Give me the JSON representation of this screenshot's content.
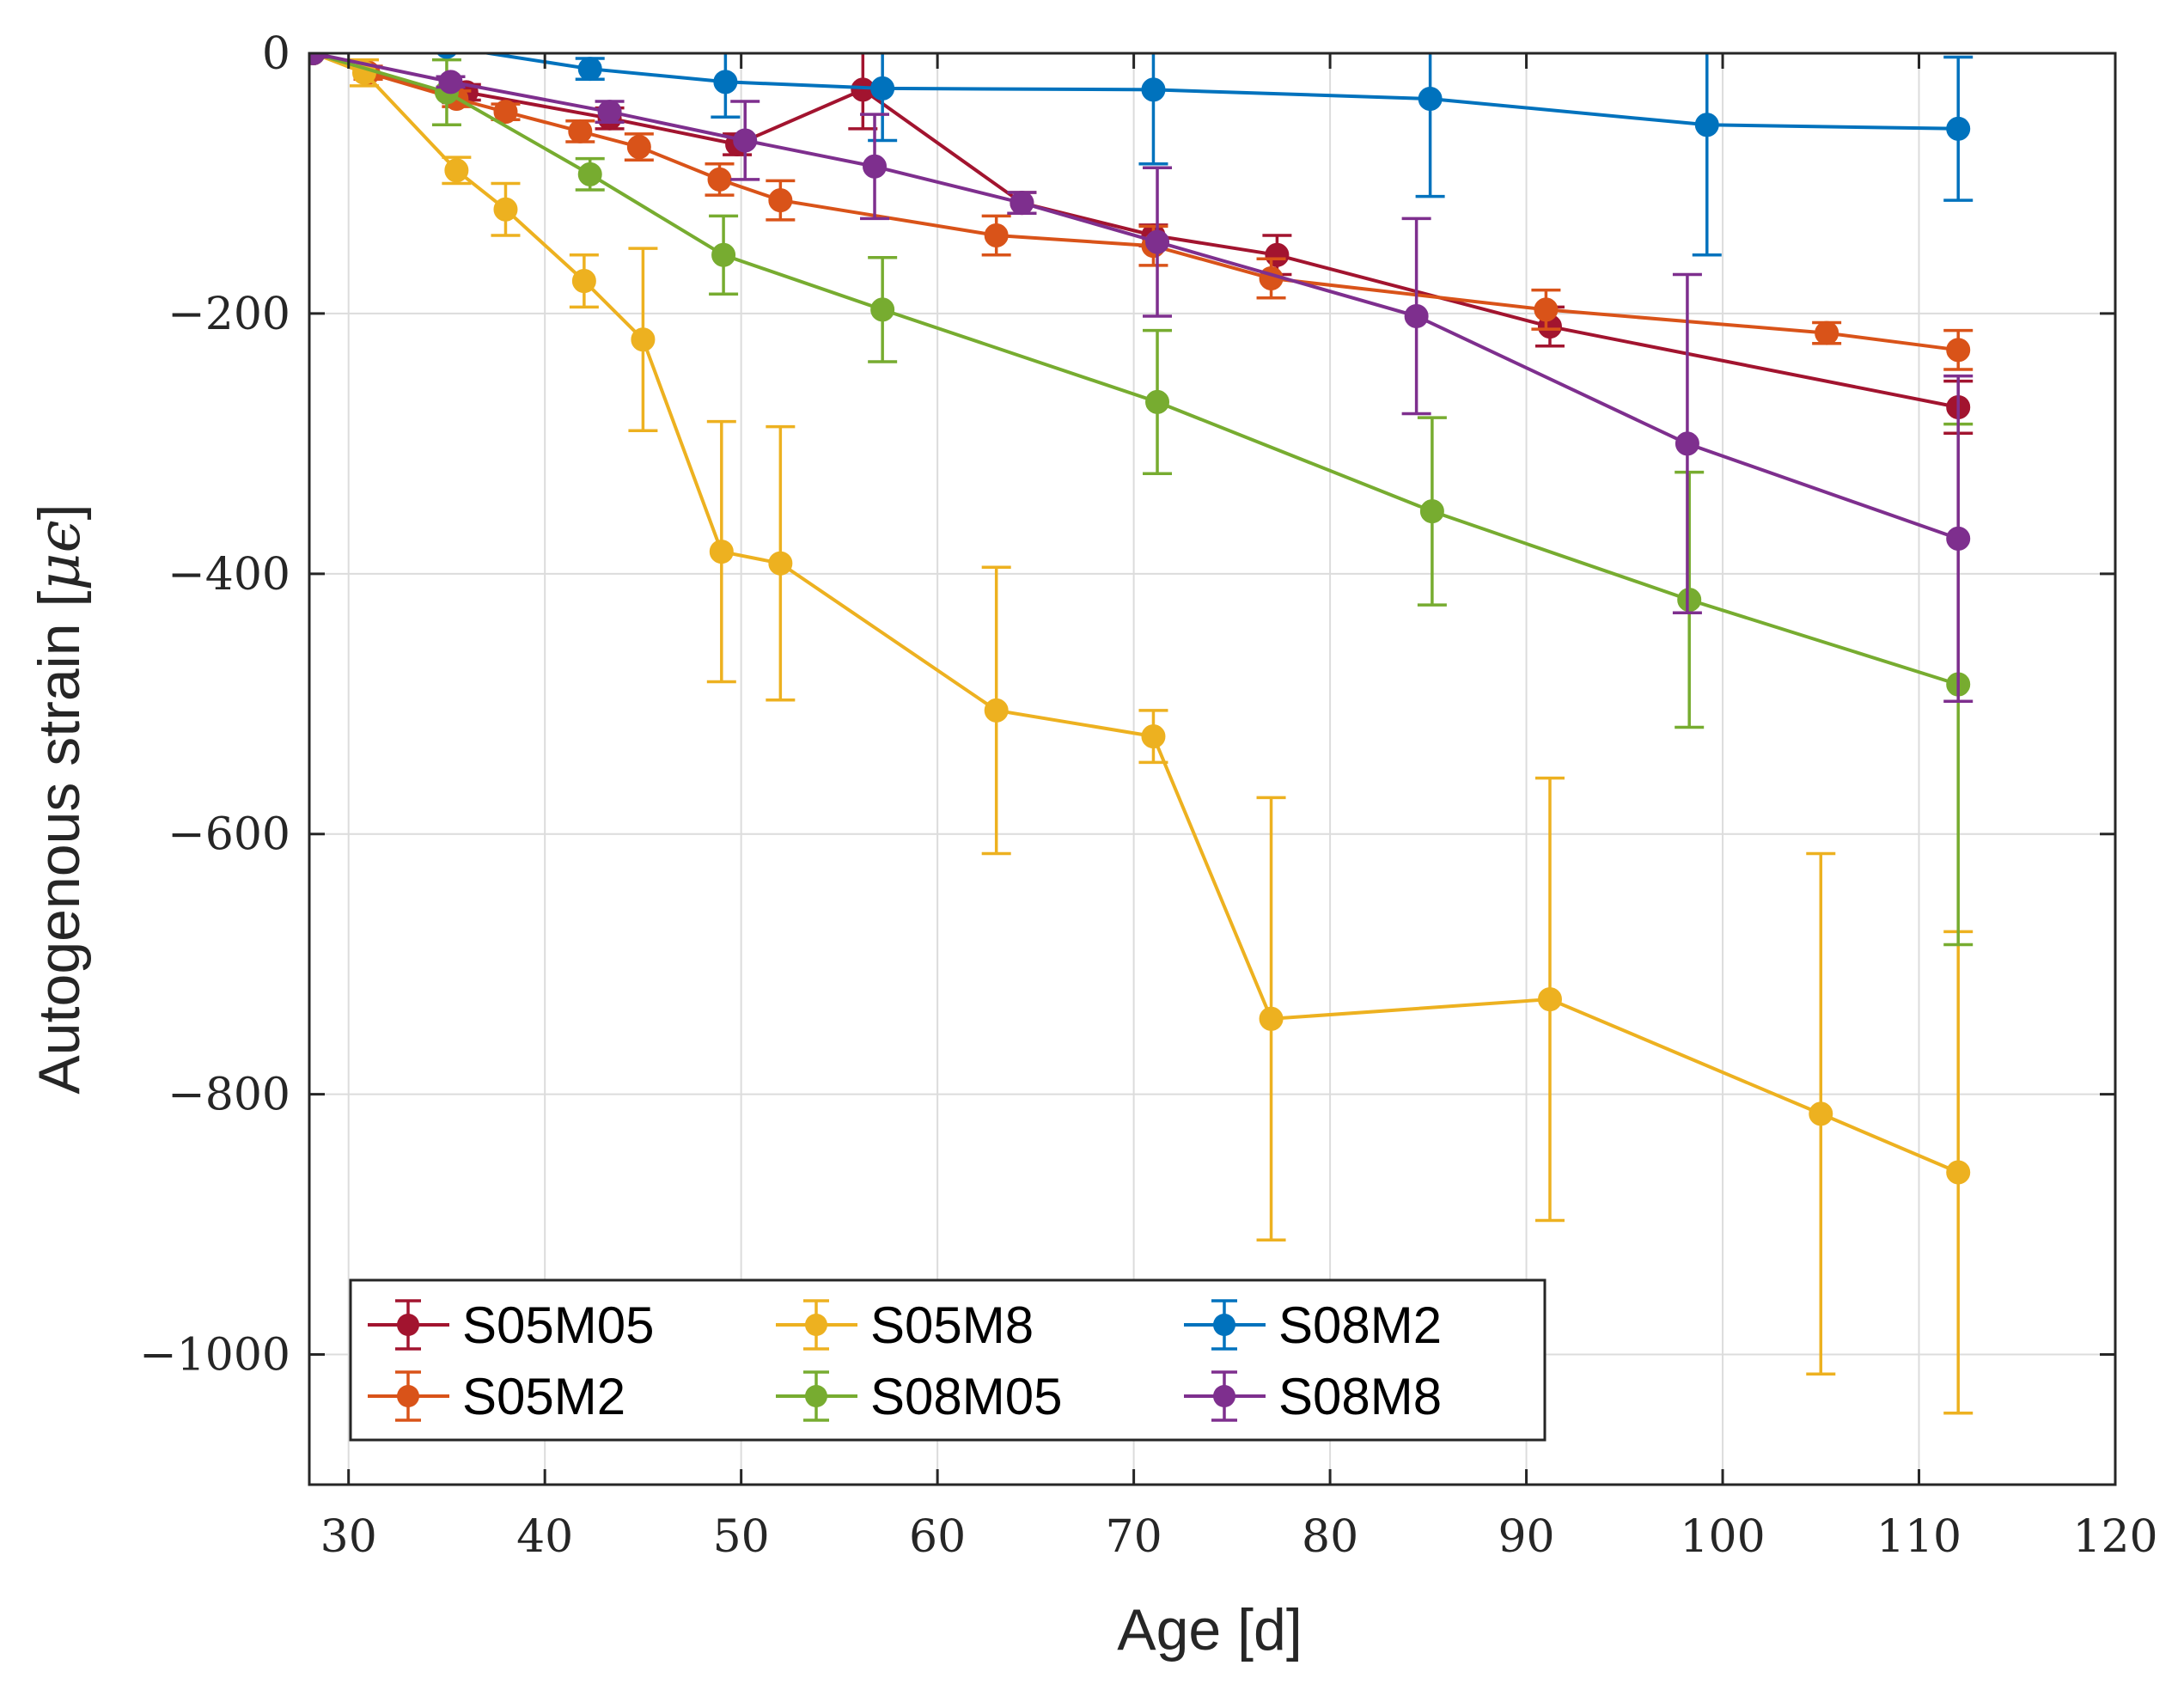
{
  "chart_data": {
    "type": "line",
    "title": "",
    "xlabel": "Age [d]",
    "ylabel_text": "Autogenous strain [",
    "ylabel_unit": "μϵ",
    "ylabel_close": "]",
    "xlim": [
      28,
      120
    ],
    "ylim": [
      -1100,
      0
    ],
    "xticks": [
      30,
      40,
      50,
      60,
      70,
      80,
      90,
      100,
      110,
      120
    ],
    "yticks": [
      0,
      -200,
      -400,
      -600,
      -800,
      -1000
    ],
    "ytick_labels": [
      "0",
      "−200",
      "−400",
      "−600",
      "−800",
      "−1000"
    ],
    "grid": true,
    "legend_position": "bottom-left",
    "series": [
      {
        "name": "S05M05",
        "color": "#A2142F",
        "x": [
          28.2,
          31,
          35.5,
          36,
          43.3,
          49.8,
          56.2,
          64.3,
          71,
          77.3,
          91.2,
          112
        ],
        "y": [
          0,
          -15,
          -32,
          -30,
          -50,
          -70,
          -28,
          -115,
          -140,
          -155,
          -210,
          -272
        ],
        "err": [
          3,
          5,
          6,
          6,
          8,
          8,
          30,
          8,
          8,
          15,
          15,
          20
        ]
      },
      {
        "name": "S05M2",
        "color": "#D95319",
        "x": [
          28.2,
          31,
          35.5,
          38,
          41.8,
          44.8,
          48.9,
          52,
          63,
          71,
          77,
          91,
          105.3,
          112
        ],
        "y": [
          0,
          -15,
          -35,
          -45,
          -60,
          -72,
          -97,
          -113,
          -140,
          -148,
          -173,
          -197,
          -215,
          -228
        ],
        "err": [
          3,
          5,
          6,
          6,
          8,
          10,
          12,
          15,
          15,
          15,
          15,
          15,
          8,
          15
        ]
      },
      {
        "name": "S05M8",
        "color": "#EDB120",
        "x": [
          28.2,
          30.8,
          35.5,
          38,
          42,
          45,
          49,
          52,
          63,
          71,
          77,
          91.2,
          105,
          112
        ],
        "y": [
          0,
          -15,
          -90,
          -120,
          -175,
          -220,
          -383,
          -392,
          -505,
          -525,
          -742,
          -727,
          -815,
          -860
        ],
        "err": [
          3,
          10,
          10,
          20,
          20,
          70,
          100,
          105,
          110,
          20,
          170,
          170,
          200,
          185
        ]
      },
      {
        "name": "S08M05",
        "color": "#77AC30",
        "x": [
          28.2,
          35,
          42.3,
          49.1,
          57.2,
          71.2,
          85.2,
          98.3,
          112
        ],
        "y": [
          0,
          -30,
          -93,
          -155,
          -197,
          -268,
          -352,
          -420,
          -485
        ],
        "err": [
          3,
          25,
          12,
          30,
          40,
          55,
          72,
          98,
          200
        ]
      },
      {
        "name": "S08M2",
        "color": "#0072BD",
        "x": [
          35,
          42.3,
          49.2,
          57.2,
          71,
          85.1,
          99.2,
          112
        ],
        "y": [
          5,
          -12,
          -22,
          -27,
          -28,
          -35,
          -55,
          -58
        ],
        "err": [
          3,
          8,
          27,
          40,
          57,
          75,
          100,
          55
        ]
      },
      {
        "name": "S08M8",
        "color": "#7E2F8E",
        "x": [
          28.2,
          35.2,
          43.3,
          50.2,
          56.8,
          64.3,
          71.2,
          84.4,
          98.2,
          112
        ],
        "y": [
          0,
          -22,
          -45,
          -67,
          -87,
          -115,
          -145,
          -202,
          -300,
          -373
        ],
        "err": [
          3,
          4,
          8,
          30,
          40,
          8,
          57,
          75,
          130,
          125
        ]
      }
    ]
  }
}
